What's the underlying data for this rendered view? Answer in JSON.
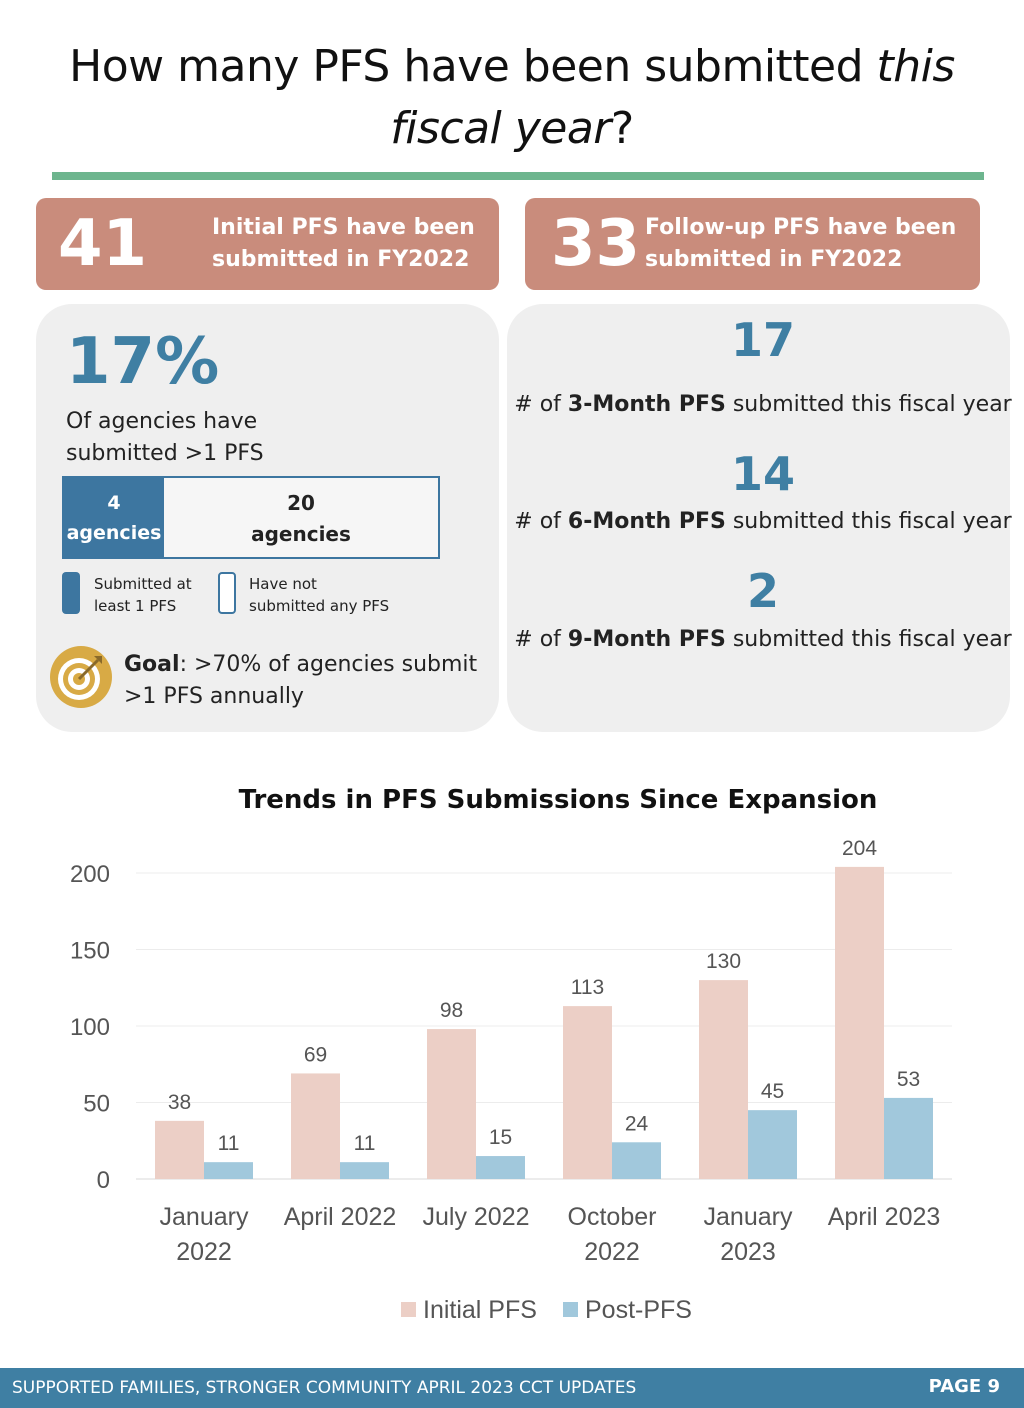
{
  "header": {
    "title_line1": "How many PFS have been submitted ",
    "title_italic1": "this",
    "title_italic2": "fiscal year",
    "title_end": "?"
  },
  "banners": {
    "initial": {
      "number": "41",
      "line1": "Initial PFS have been",
      "line2": "submitted in FY2022"
    },
    "followup": {
      "number": "33",
      "line1": "Follow-up PFS have been",
      "line2": "submitted in FY2022"
    }
  },
  "agencies": {
    "percent": "17%",
    "desc_line1": "Of agencies have",
    "desc_line2": "submitted >1 PFS",
    "submitted_count": "4",
    "submitted_unit": "agencies",
    "not_submitted_count": "20",
    "not_submitted_unit": "agencies",
    "legend_submitted_1": "Submitted at",
    "legend_submitted_2": "least 1 PFS",
    "legend_not_1": "Have not",
    "legend_not_2": "submitted any PFS",
    "goal_label": "Goal",
    "goal_text_1": ": >70% of agencies submit",
    "goal_text_2": ">1 PFS annually"
  },
  "followup_stats": [
    {
      "number": "17",
      "prefix": "# of ",
      "bold": "3-Month PFS",
      "suffix": " submitted this fiscal year"
    },
    {
      "number": "14",
      "prefix": "# of ",
      "bold": "6-Month PFS",
      "suffix": " submitted this fiscal year"
    },
    {
      "number": "2",
      "prefix": "# of ",
      "bold": "9-Month PFS",
      "suffix": " submitted this fiscal year"
    }
  ],
  "chart_data": {
    "type": "bar",
    "title": "Trends in PFS Submissions Since Expansion",
    "categories": [
      [
        "January",
        "2022"
      ],
      [
        "April 2022"
      ],
      [
        "July 2022"
      ],
      [
        "October",
        "2022"
      ],
      [
        "January",
        "2023"
      ],
      [
        "April 2023"
      ]
    ],
    "series": [
      {
        "name": "Initial PFS",
        "values": [
          38,
          69,
          98,
          113,
          130,
          204
        ],
        "color": "#eccfc6"
      },
      {
        "name": "Post-PFS",
        "values": [
          11,
          11,
          15,
          24,
          45,
          53
        ],
        "color": "#a1c8dc"
      }
    ],
    "yticks": [
      0,
      50,
      100,
      150,
      200
    ],
    "ylim": [
      0,
      200
    ],
    "xlabel": "",
    "ylabel": "",
    "legend": "bottom"
  },
  "footer": {
    "text": "SUPPORTED FAMILIES, STRONGER COMMUNITY APRIL 2023 CCT UPDATES",
    "page": "PAGE 9"
  },
  "colors": {
    "accent_blue": "#3f7fa3",
    "banner": "#c98c7c",
    "rule_green": "#6db58e"
  }
}
